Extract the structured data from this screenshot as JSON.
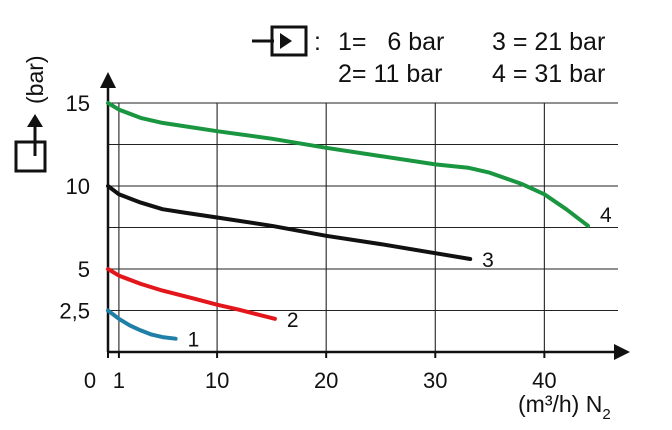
{
  "chart_data": {
    "type": "line",
    "x_unit_label": "(m³/h) N",
    "x_unit_subscript": "2",
    "y_unit_label": "(bar)",
    "x_tick_labels": [
      {
        "value": 0,
        "text": "0"
      },
      {
        "value": 1,
        "text": "1"
      },
      {
        "value": 10,
        "text": "10"
      },
      {
        "value": 20,
        "text": "20"
      },
      {
        "value": 30,
        "text": "30"
      },
      {
        "value": 40,
        "text": "40"
      }
    ],
    "y_tick_labels": [
      {
        "value": 2.5,
        "text": "2,5"
      },
      {
        "value": 5,
        "text": "5"
      },
      {
        "value": 10,
        "text": "10"
      },
      {
        "value": 15,
        "text": "15"
      }
    ],
    "xlim": [
      0,
      44
    ],
    "ylim": [
      0,
      15
    ],
    "grid": true,
    "legend": {
      "entries": [
        {
          "text": "1=   6 bar"
        },
        {
          "text": "3 = 21 bar"
        },
        {
          "text": "2= 11 bar"
        },
        {
          "text": "4 = 31 bar"
        }
      ]
    },
    "series": [
      {
        "label": "1",
        "inlet_pressure": "6 bar",
        "color": "#1f7fa6",
        "x": [
          0,
          1,
          2,
          3,
          4,
          5,
          6.2
        ],
        "y": [
          2.5,
          2.0,
          1.6,
          1.3,
          1.05,
          0.9,
          0.8
        ]
      },
      {
        "label": "2",
        "inlet_pressure": "11 bar",
        "color": "#e3161c",
        "x": [
          0,
          1,
          3,
          5,
          8,
          10,
          12,
          15.3
        ],
        "y": [
          5.0,
          4.6,
          4.1,
          3.7,
          3.2,
          2.85,
          2.55,
          2.0
        ]
      },
      {
        "label": "3",
        "inlet_pressure": "21 bar",
        "color": "#111111",
        "x": [
          0,
          1,
          3,
          5,
          7,
          10,
          15,
          20,
          25,
          30,
          33.2
        ],
        "y": [
          10.0,
          9.5,
          9.0,
          8.6,
          8.4,
          8.1,
          7.6,
          7.0,
          6.5,
          5.95,
          5.6
        ]
      },
      {
        "label": "4",
        "inlet_pressure": "31 bar",
        "color": "#1a9640",
        "x": [
          0,
          1,
          3,
          5,
          10,
          15,
          20,
          25,
          30,
          33,
          35,
          38,
          40,
          42,
          44
        ],
        "y": [
          15.0,
          14.6,
          14.1,
          13.8,
          13.3,
          12.85,
          12.3,
          11.8,
          11.3,
          11.1,
          10.8,
          10.1,
          9.5,
          8.6,
          7.6
        ]
      }
    ]
  }
}
